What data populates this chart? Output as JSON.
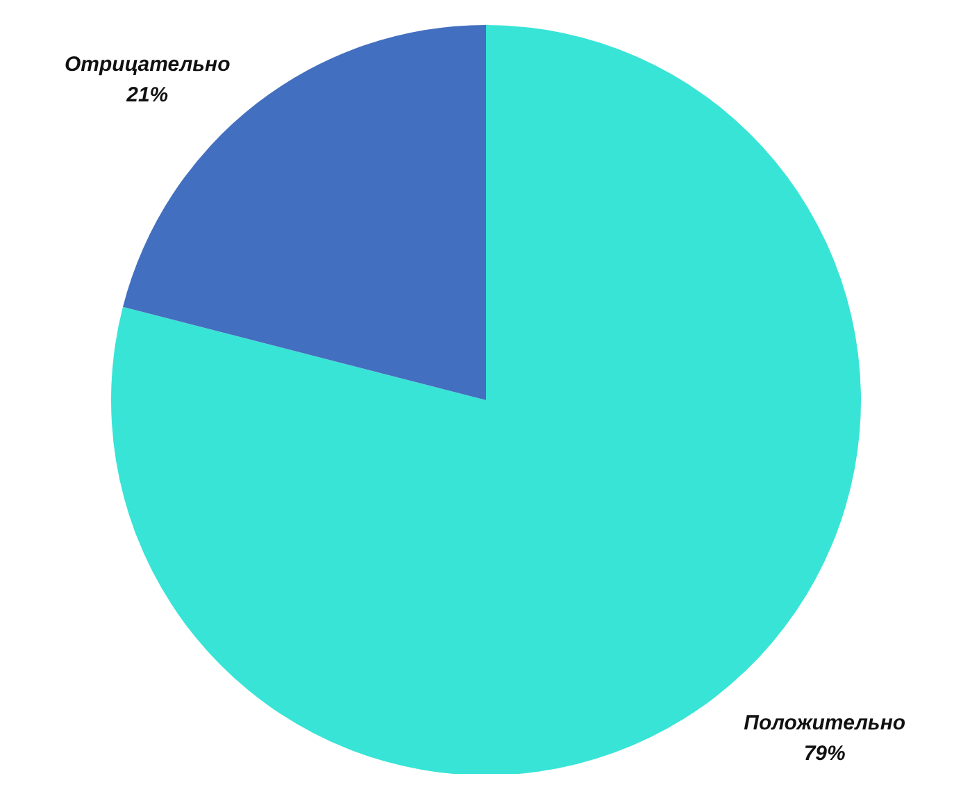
{
  "chart_data": {
    "type": "pie",
    "categories": [
      "Положительно",
      "Отрицательно"
    ],
    "values": [
      79,
      21
    ],
    "colors": [
      "#38e4d6",
      "#426fbf"
    ],
    "value_labels": [
      "79%",
      "21%"
    ]
  }
}
